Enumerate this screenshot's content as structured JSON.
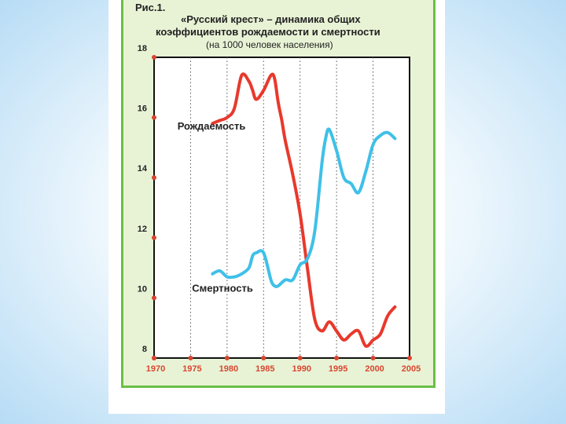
{
  "figure": {
    "label": "Рис.1.",
    "title_line1": "«Русский крест» – динамика общих",
    "title_line2": "коэффициентов рождаемости и смертности",
    "title_line3": "(на 1000 человек населения)"
  },
  "colors": {
    "birth_series": "#e8392c",
    "death_series": "#3fc0e8",
    "panel_border": "#6abf45",
    "panel_bg": "#e8f3d6",
    "tick_label": "#d9462f"
  },
  "chart_data": {
    "type": "line",
    "xlim": [
      1970,
      2005
    ],
    "ylim": [
      8,
      18
    ],
    "xticks": [
      1970,
      1975,
      1980,
      1985,
      1990,
      1995,
      2000,
      2005
    ],
    "yticks": [
      8,
      10,
      12,
      14,
      16,
      18
    ],
    "grid": "vertical dotted at x ticks",
    "series": [
      {
        "name": "Рождаемость",
        "x": [
          1978,
          1979,
          1980,
          1981,
          1982,
          1983,
          1983.5,
          1984,
          1985,
          1986,
          1986.5,
          1987,
          1987.5,
          1988,
          1989,
          1990,
          1991,
          1992,
          1993,
          1994,
          1995,
          1996,
          1997,
          1998,
          1999,
          2000,
          2001,
          2002,
          2003
        ],
        "y": [
          15.8,
          15.9,
          16.0,
          16.3,
          17.4,
          17.2,
          16.9,
          16.6,
          16.9,
          17.4,
          17.3,
          16.5,
          15.9,
          15.2,
          14.1,
          12.8,
          11.0,
          9.3,
          8.9,
          9.2,
          8.9,
          8.6,
          8.8,
          8.9,
          8.4,
          8.6,
          8.8,
          9.4,
          9.7
        ]
      },
      {
        "name": "Смертность",
        "x": [
          1978,
          1979,
          1980,
          1981,
          1982,
          1983,
          1983.5,
          1984,
          1985,
          1986,
          1986.5,
          1987,
          1988,
          1989,
          1990,
          1991,
          1992,
          1993,
          1993.5,
          1994,
          1995,
          1996,
          1997,
          1998,
          1999,
          2000,
          2001,
          2002,
          2003
        ],
        "y": [
          10.8,
          10.9,
          10.7,
          10.7,
          10.8,
          11.0,
          11.4,
          11.5,
          11.5,
          10.6,
          10.4,
          10.4,
          10.6,
          10.6,
          11.1,
          11.3,
          12.2,
          14.5,
          15.3,
          15.6,
          14.9,
          14.0,
          13.8,
          13.5,
          14.2,
          15.1,
          15.4,
          15.5,
          15.3
        ]
      }
    ],
    "annotations": [
      {
        "text": "Рождаемость",
        "x": 1973.2,
        "y": 15.6
      },
      {
        "text": "Смертность",
        "x": 1975.2,
        "y": 10.2
      }
    ]
  }
}
